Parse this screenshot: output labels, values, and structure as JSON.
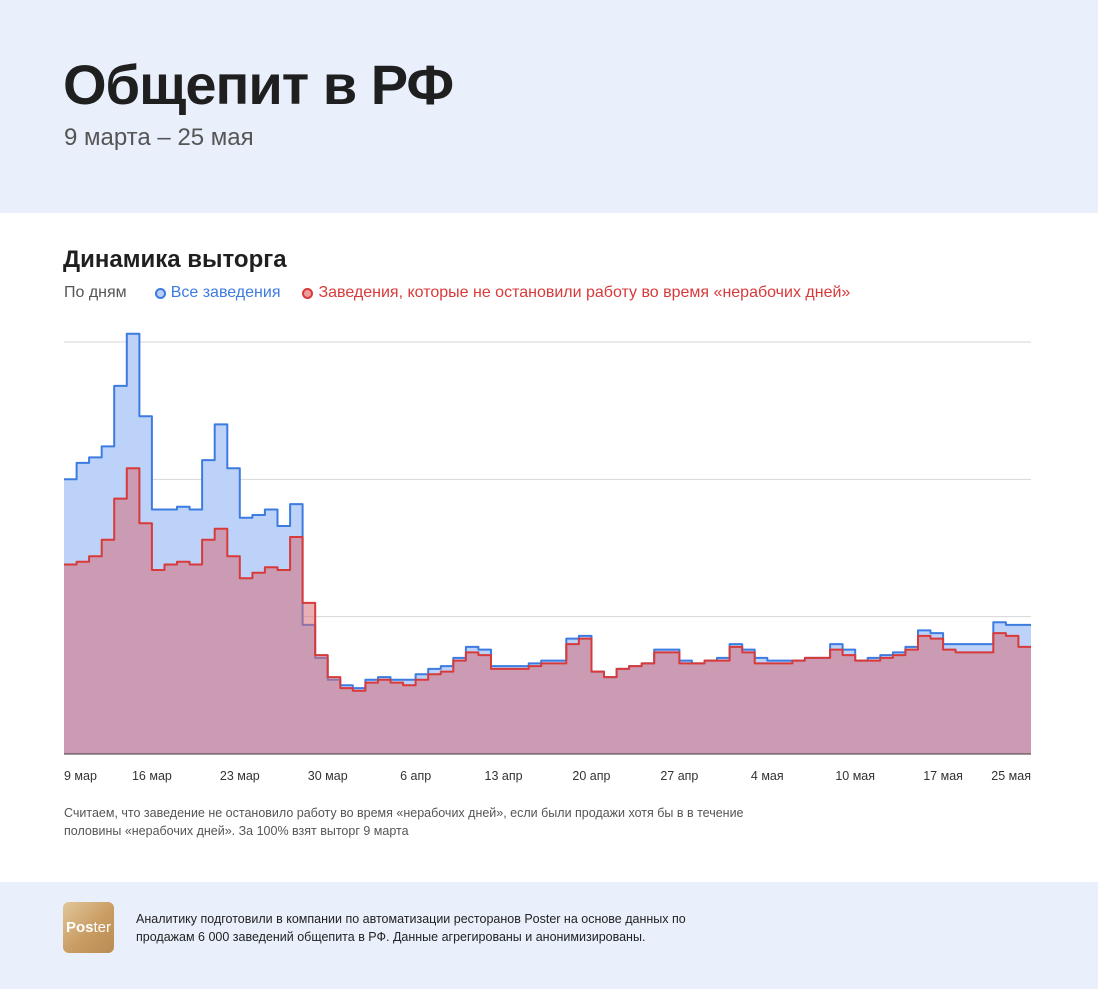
{
  "header": {
    "title": "Общепит в РФ",
    "subtitle": "9 марта – 25 мая"
  },
  "chart_section": {
    "title": "Динамика выторга",
    "mode_label": "По дням",
    "legend": [
      {
        "label": "Все заведения",
        "color": "#3d7be0",
        "fill": "#b9cff7"
      },
      {
        "label": "Заведения, которые не остановили работу во время «нерабочих дней»",
        "color": "#d83a3a",
        "fill": "#cca3b7"
      }
    ]
  },
  "chart_data": {
    "type": "area",
    "step": true,
    "x_ticks": [
      "9 мар",
      "16 мар",
      "23 мар",
      "30 мар",
      "6 апр",
      "13 апр",
      "20 апр",
      "27 апр",
      "4 мая",
      "10 мая",
      "17 мая",
      "25 мая"
    ],
    "ylim": [
      0,
      150
    ],
    "grid": true,
    "series": [
      {
        "name": "Все заведения",
        "values": [
          100,
          106,
          108,
          112,
          134,
          153,
          123,
          89,
          89,
          90,
          89,
          107,
          120,
          104,
          86,
          87,
          89,
          83,
          91,
          47,
          35,
          27,
          25,
          24,
          27,
          28,
          27,
          27,
          29,
          31,
          32,
          35,
          39,
          38,
          32,
          32,
          32,
          33,
          34,
          34,
          42,
          43,
          30,
          28,
          31,
          32,
          33,
          38,
          38,
          34,
          33,
          34,
          35,
          40,
          38,
          35,
          34,
          34,
          34,
          35,
          35,
          40,
          38,
          34,
          35,
          36,
          37,
          39,
          45,
          44,
          40,
          40,
          40,
          40,
          48,
          47,
          47
        ]
      },
      {
        "name": "Заведения, которые не остановили работу во время «нерабочих дней»",
        "values": [
          69,
          70,
          72,
          78,
          93,
          104,
          84,
          67,
          69,
          70,
          69,
          78,
          82,
          72,
          64,
          66,
          68,
          67,
          79,
          55,
          36,
          28,
          24,
          23,
          26,
          27,
          26,
          25,
          27,
          29,
          30,
          34,
          37,
          36,
          31,
          31,
          31,
          32,
          33,
          33,
          40,
          42,
          30,
          28,
          31,
          32,
          33,
          37,
          37,
          33,
          33,
          34,
          34,
          39,
          37,
          33,
          33,
          33,
          34,
          35,
          35,
          38,
          36,
          34,
          34,
          35,
          36,
          38,
          43,
          42,
          38,
          37,
          37,
          37,
          44,
          43,
          39
        ]
      }
    ]
  },
  "note": "Считаем, что заведение не остановило работу во время «нерабочих дней», если были продажи хотя бы в в течение половины «нерабочих дней». За 100% взят выторг 9 марта",
  "footer": {
    "logo_text_bold": "Pos",
    "logo_text_thin": "ter",
    "text": "Аналитику подготовили в компании по автоматизации ресторанов Poster на основе данных по продажам 6 000 заведений общепита в РФ. Данные агрегированы и анонимизированы."
  }
}
